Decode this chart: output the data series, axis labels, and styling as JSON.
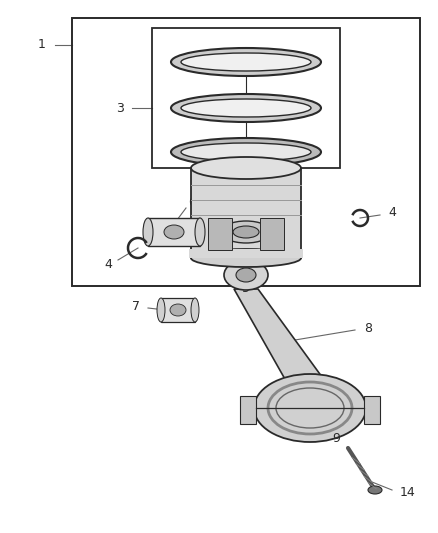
{
  "bg_color": "#ffffff",
  "line_color": "#2a2a2a",
  "label_color": "#2a2a2a",
  "figsize": [
    4.38,
    5.33
  ],
  "dpi": 100,
  "label_fs": 9,
  "leader_color": "#666666",
  "leader_lw": 0.8
}
